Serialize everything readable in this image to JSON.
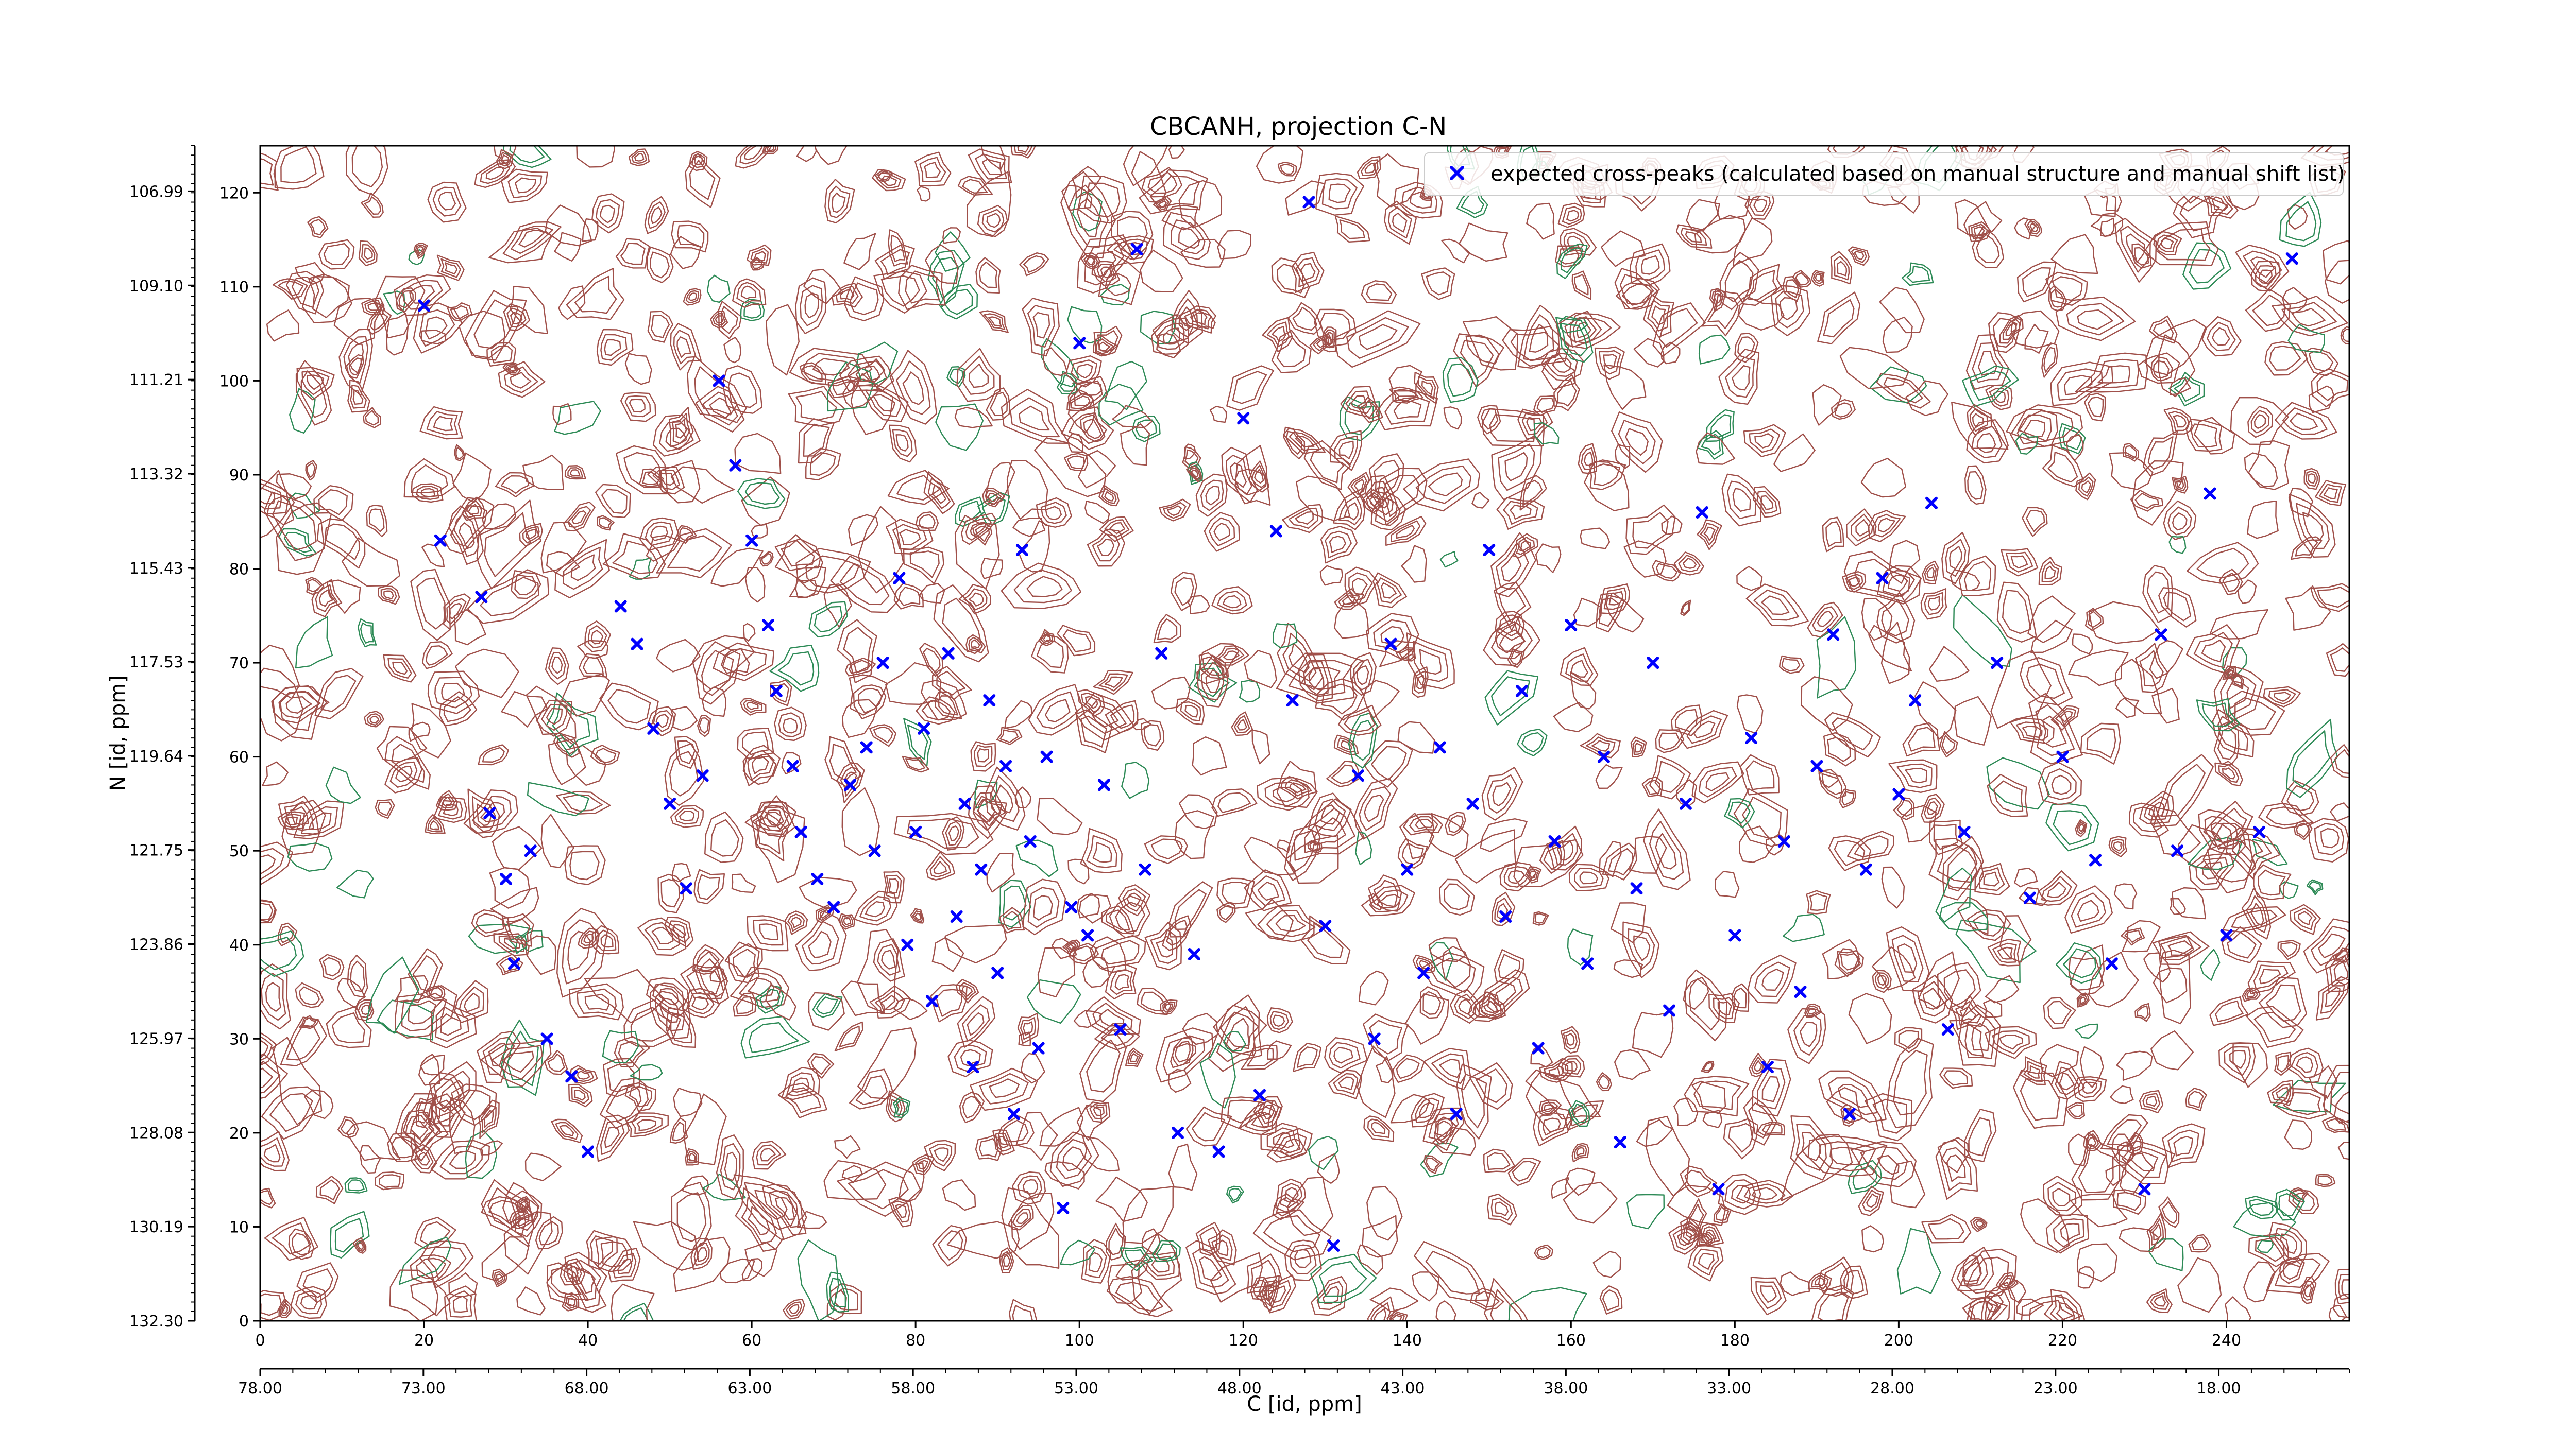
{
  "chart_data": {
    "type": "scatter",
    "title": "CBCANH, projection C-N",
    "xlabel": "C [id, ppm]",
    "ylabel": "N [id, ppm]",
    "x_range": [
      0,
      255
    ],
    "y_range": [
      0,
      125
    ],
    "x_ticks": [
      0,
      20,
      40,
      60,
      80,
      100,
      120,
      140,
      160,
      180,
      200,
      220,
      240
    ],
    "y_ticks": [
      0,
      10,
      20,
      30,
      40,
      50,
      60,
      70,
      80,
      90,
      100,
      110,
      120
    ],
    "x_secondary_range": [
      78.0,
      14.0
    ],
    "x_secondary_ticks": [
      "78.00",
      "73.00",
      "68.00",
      "63.00",
      "58.00",
      "53.00",
      "48.00",
      "43.00",
      "38.00",
      "33.00",
      "28.00",
      "23.00",
      "18.00"
    ],
    "y_secondary_range": [
      132.3,
      105.97
    ],
    "y_secondary_ticks": [
      "132.30",
      "130.19",
      "128.08",
      "125.97",
      "123.86",
      "121.75",
      "119.64",
      "117.53",
      "115.43",
      "113.32",
      "111.21",
      "109.10",
      "106.99"
    ],
    "grid": false,
    "legend_position": "top-right",
    "colors": {
      "peaks": "#0000ff",
      "positive_contours": "#a0504a",
      "negative_contours": "#2e8b57"
    },
    "series": [
      {
        "name": "expected cross-peaks (calculated based on manual structure and manual shift list)",
        "marker": "X",
        "color": "#0000ff",
        "points": [
          [
            20,
            108
          ],
          [
            22,
            83
          ],
          [
            27,
            77
          ],
          [
            28,
            54
          ],
          [
            30,
            47
          ],
          [
            31,
            38
          ],
          [
            33,
            50
          ],
          [
            35,
            30
          ],
          [
            38,
            26
          ],
          [
            40,
            18
          ],
          [
            44,
            76
          ],
          [
            46,
            72
          ],
          [
            48,
            63
          ],
          [
            50,
            55
          ],
          [
            52,
            46
          ],
          [
            54,
            58
          ],
          [
            56,
            100
          ],
          [
            58,
            91
          ],
          [
            60,
            83
          ],
          [
            62,
            74
          ],
          [
            63,
            67
          ],
          [
            65,
            59
          ],
          [
            66,
            52
          ],
          [
            68,
            47
          ],
          [
            70,
            44
          ],
          [
            72,
            57
          ],
          [
            74,
            61
          ],
          [
            75,
            50
          ],
          [
            76,
            70
          ],
          [
            78,
            79
          ],
          [
            79,
            40
          ],
          [
            80,
            52
          ],
          [
            81,
            63
          ],
          [
            82,
            34
          ],
          [
            84,
            71
          ],
          [
            85,
            43
          ],
          [
            86,
            55
          ],
          [
            87,
            27
          ],
          [
            88,
            48
          ],
          [
            89,
            66
          ],
          [
            90,
            37
          ],
          [
            91,
            59
          ],
          [
            92,
            22
          ],
          [
            93,
            82
          ],
          [
            94,
            51
          ],
          [
            95,
            29
          ],
          [
            96,
            60
          ],
          [
            98,
            12
          ],
          [
            99,
            44
          ],
          [
            100,
            104
          ],
          [
            101,
            41
          ],
          [
            103,
            57
          ],
          [
            105,
            31
          ],
          [
            107,
            114
          ],
          [
            108,
            48
          ],
          [
            110,
            71
          ],
          [
            112,
            20
          ],
          [
            114,
            39
          ],
          [
            117,
            18
          ],
          [
            120,
            96
          ],
          [
            122,
            24
          ],
          [
            124,
            84
          ],
          [
            126,
            66
          ],
          [
            128,
            119
          ],
          [
            130,
            42
          ],
          [
            131,
            8
          ],
          [
            134,
            58
          ],
          [
            136,
            30
          ],
          [
            138,
            72
          ],
          [
            140,
            48
          ],
          [
            142,
            37
          ],
          [
            144,
            61
          ],
          [
            146,
            22
          ],
          [
            148,
            55
          ],
          [
            150,
            82
          ],
          [
            152,
            43
          ],
          [
            154,
            67
          ],
          [
            156,
            29
          ],
          [
            158,
            51
          ],
          [
            160,
            74
          ],
          [
            162,
            38
          ],
          [
            164,
            60
          ],
          [
            166,
            19
          ],
          [
            168,
            46
          ],
          [
            170,
            70
          ],
          [
            172,
            33
          ],
          [
            174,
            55
          ],
          [
            176,
            86
          ],
          [
            178,
            14
          ],
          [
            180,
            41
          ],
          [
            182,
            62
          ],
          [
            184,
            27
          ],
          [
            186,
            51
          ],
          [
            188,
            35
          ],
          [
            190,
            59
          ],
          [
            192,
            73
          ],
          [
            194,
            22
          ],
          [
            196,
            48
          ],
          [
            198,
            79
          ],
          [
            200,
            56
          ],
          [
            202,
            66
          ],
          [
            204,
            87
          ],
          [
            206,
            31
          ],
          [
            208,
            52
          ],
          [
            212,
            70
          ],
          [
            216,
            45
          ],
          [
            220,
            60
          ],
          [
            224,
            49
          ],
          [
            226,
            38
          ],
          [
            230,
            14
          ],
          [
            232,
            73
          ],
          [
            234,
            50
          ],
          [
            238,
            88
          ],
          [
            240,
            41
          ],
          [
            244,
            52
          ],
          [
            248,
            113
          ]
        ]
      }
    ]
  },
  "legend": {
    "label": "expected cross-peaks (calculated based on manual structure and manual shift list)"
  }
}
